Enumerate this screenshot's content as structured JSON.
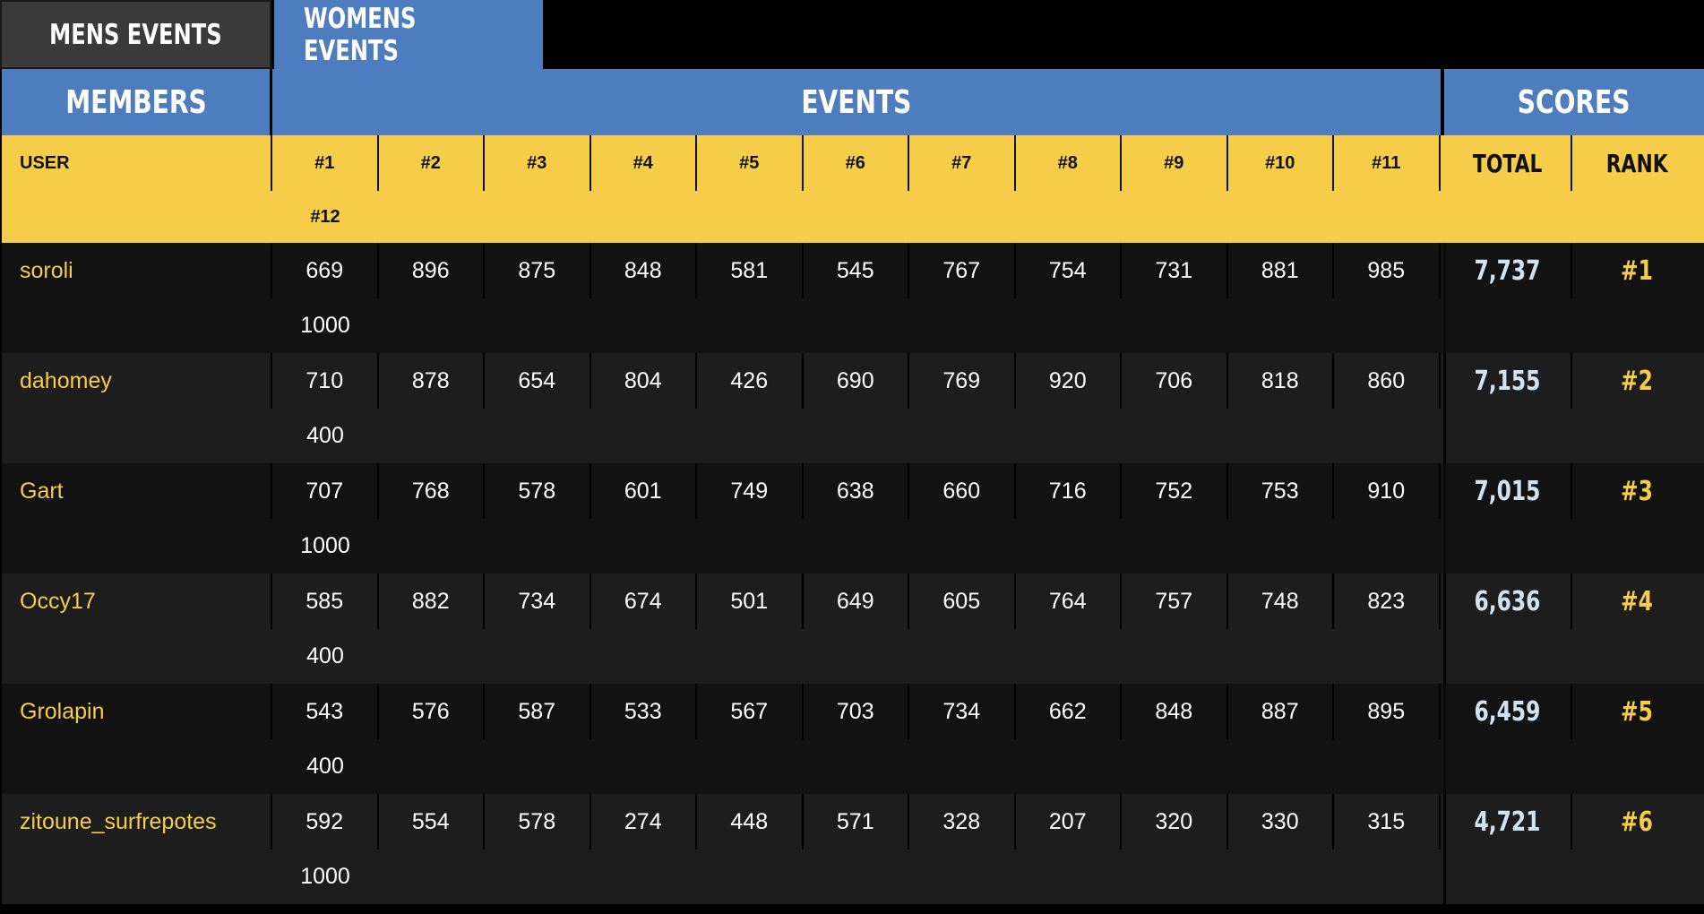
{
  "tabs": [
    {
      "label": "MENS EVENTS",
      "active": false
    },
    {
      "label": "WOMENS EVENTS",
      "active": true
    }
  ],
  "groups": {
    "members": "MEMBERS",
    "events": "EVENTS",
    "scores": "SCORES"
  },
  "columns": {
    "user": "USER",
    "events": [
      "#1",
      "#2",
      "#3",
      "#4",
      "#5",
      "#6",
      "#7",
      "#8",
      "#9",
      "#10",
      "#11",
      "#12"
    ],
    "total": "TOTAL",
    "rank": "RANK"
  },
  "rows": [
    {
      "user": "soroli",
      "scores": [
        "669",
        "896",
        "875",
        "848",
        "581",
        "545",
        "767",
        "754",
        "731",
        "881",
        "985",
        "1000"
      ],
      "total": "7,737",
      "rank": "#1"
    },
    {
      "user": "dahomey",
      "scores": [
        "710",
        "878",
        "654",
        "804",
        "426",
        "690",
        "769",
        "920",
        "706",
        "818",
        "860",
        "400"
      ],
      "total": "7,155",
      "rank": "#2"
    },
    {
      "user": "Gart",
      "scores": [
        "707",
        "768",
        "578",
        "601",
        "749",
        "638",
        "660",
        "716",
        "752",
        "753",
        "910",
        "1000"
      ],
      "total": "7,015",
      "rank": "#3"
    },
    {
      "user": "Occy17",
      "scores": [
        "585",
        "882",
        "734",
        "674",
        "501",
        "649",
        "605",
        "764",
        "757",
        "748",
        "823",
        "400"
      ],
      "total": "6,636",
      "rank": "#4"
    },
    {
      "user": "Grolapin",
      "scores": [
        "543",
        "576",
        "587",
        "533",
        "567",
        "703",
        "734",
        "662",
        "848",
        "887",
        "895",
        "400"
      ],
      "total": "6,459",
      "rank": "#5"
    },
    {
      "user": "zitoune_surfrepotes",
      "scores": [
        "592",
        "554",
        "578",
        "274",
        "448",
        "571",
        "328",
        "207",
        "320",
        "330",
        "315",
        "1000"
      ],
      "total": "4,721",
      "rank": "#6"
    }
  ],
  "colors": {
    "tab_active": "#4d7cbf",
    "tab_inactive": "#3a3a3a",
    "header_yellow": "#f5cd48",
    "username": "#f5cd48",
    "total": "#cfe3f0",
    "rank": "#f5cd48"
  }
}
